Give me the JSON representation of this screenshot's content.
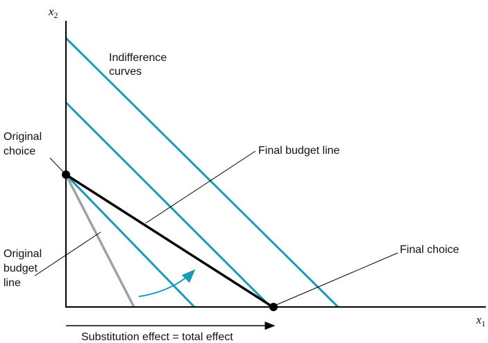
{
  "axes": {
    "y": {
      "letter": "x",
      "subscript": "2"
    },
    "x": {
      "letter": "x",
      "subscript": "1"
    }
  },
  "labels": {
    "indifference": [
      "Indifference",
      "curves"
    ],
    "original_choice": [
      "Original",
      "choice"
    ],
    "final_budget_line": "Final budget line",
    "original_budget_line": [
      "Original",
      "budget",
      "line"
    ],
    "final_choice": "Final choice",
    "effect": "Substitution effect = total effect"
  }
}
